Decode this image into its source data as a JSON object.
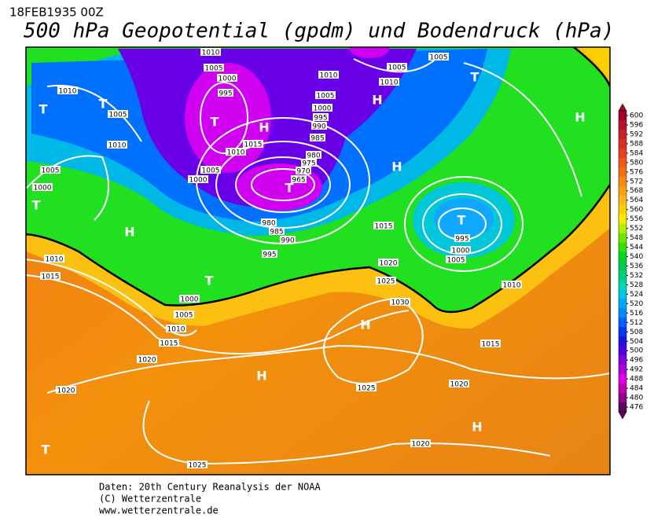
{
  "header": {
    "date": "18FEB1935 00Z",
    "title": "500 hPa Geopotential (gpdm) und Bodendruck (hPa)"
  },
  "isobar_labels": [
    "1010",
    "1005",
    "1000",
    "995",
    "1010",
    "1005",
    "1010",
    "1005",
    "1000",
    "1010",
    "1005",
    "1010",
    "1005",
    "1005",
    "1000",
    "995",
    "990",
    "985",
    "1015",
    "1010",
    "1005",
    "1000",
    "980",
    "975",
    "970",
    "965",
    "980",
    "985",
    "990",
    "995",
    "1015",
    "995",
    "1000",
    "1005",
    "1020",
    "1025",
    "1030",
    "1010",
    "1010",
    "1015",
    "1000",
    "1005",
    "1010",
    "1015",
    "1020",
    "1015",
    "1020",
    "1025",
    "1020",
    "1025",
    "1020"
  ],
  "pressure_centers": [
    "T",
    "T",
    "T",
    "H",
    "T",
    "H",
    "T",
    "T",
    "H",
    "T",
    "H",
    "H",
    "T",
    "H",
    "H",
    "H",
    "T"
  ],
  "colorbar": {
    "ticks": [
      600,
      596,
      592,
      588,
      584,
      580,
      576,
      572,
      568,
      564,
      560,
      556,
      552,
      548,
      544,
      540,
      536,
      532,
      528,
      524,
      520,
      516,
      512,
      508,
      504,
      500,
      496,
      492,
      488,
      484,
      480,
      476
    ],
    "colors": [
      "#a0002a",
      "#b8102a",
      "#c8202a",
      "#d83020",
      "#e84020",
      "#f05a18",
      "#f47010",
      "#f88810",
      "#faa010",
      "#fcb818",
      "#fdd000",
      "#ffe800",
      "#b0f000",
      "#70e800",
      "#30e000",
      "#00d820",
      "#00c850",
      "#00d080",
      "#00d8b0",
      "#00c8e0",
      "#00a8ff",
      "#0088ff",
      "#0060ff",
      "#0038f0",
      "#2010e0",
      "#5000e0",
      "#8000e0",
      "#b000e0",
      "#e000e8",
      "#c000b0",
      "#900088",
      "#600060"
    ]
  },
  "footer": [
    "Daten: 20th Century Reanalysis der NOAA",
    "(C) Wetterzentrale",
    "www.wetterzentrale.de"
  ]
}
